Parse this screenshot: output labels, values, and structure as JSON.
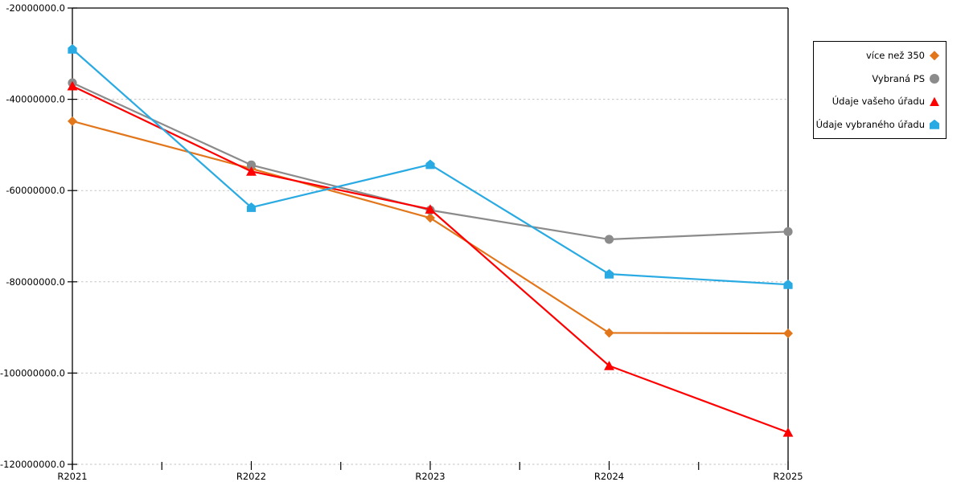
{
  "chart_data": {
    "type": "line",
    "title": "",
    "xlabel": "",
    "ylabel": "",
    "categories": [
      "R2021",
      "R2022",
      "R2023",
      "R2024",
      "R2025"
    ],
    "series": [
      {
        "name": "více než 350",
        "marker": "diamond",
        "color": "#E2761B",
        "values": [
          -44800000,
          -55200000,
          -66000000,
          -91200000,
          -91300000
        ]
      },
      {
        "name": "Vybraná PS",
        "marker": "circle",
        "color": "#8B8B8B",
        "values": [
          -36400000,
          -54400000,
          -64300000,
          -70700000,
          -69000000
        ]
      },
      {
        "name": "Údaje vašeho úřadu",
        "marker": "triangle",
        "color": "#FE0000",
        "values": [
          -37100000,
          -55800000,
          -64100000,
          -98400000,
          -113000000
        ]
      },
      {
        "name": "Údaje vybraného úřadu",
        "marker": "pentagon",
        "color": "#2AAAE2",
        "values": [
          -29000000,
          -63700000,
          -54300000,
          -78300000,
          -80600000
        ]
      }
    ],
    "ylim": [
      -120000000,
      -20000000
    ],
    "y_tick_step": 20000000,
    "y_tick_labels": [
      "-20000000.0",
      "-40000000.0",
      "-60000000.0",
      "-80000000.0",
      "-100000000.0",
      "-120000000.0"
    ],
    "grid": "horizontal-dashed",
    "legend_position": "outside-top-right"
  },
  "colors": {
    "axis": "#000000",
    "gridline": "#C3C3C3",
    "background": "#FFFFFF",
    "text": "#000000"
  }
}
